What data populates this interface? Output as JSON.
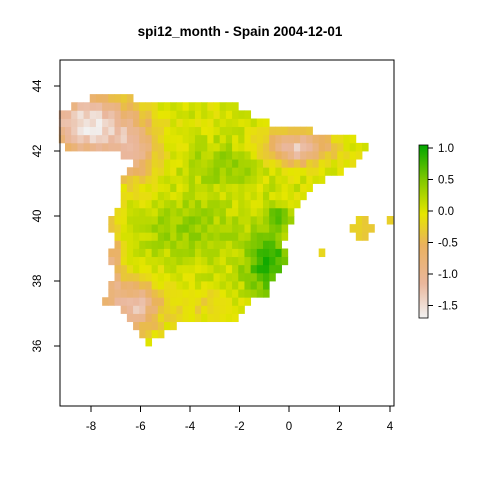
{
  "chart_data": {
    "type": "heatmap",
    "title": "spi12_month - Spain 2004-12-01",
    "xlabel": "",
    "ylabel": "",
    "xlim": [
      -9.3,
      4.3
    ],
    "ylim": [
      34,
      45
    ],
    "x_ticks": [
      "-8",
      "-6",
      "-4",
      "-2",
      "0",
      "2",
      "4"
    ],
    "y_ticks": [
      "36",
      "38",
      "40",
      "42",
      "44"
    ],
    "legend": {
      "placement": "right",
      "ticks": [
        "1.0",
        "0.5",
        "0.0",
        "-0.5",
        "-1.0",
        "-1.5"
      ],
      "range": [
        -1.75,
        1.1
      ],
      "colors": [
        "#f2f2f2",
        "#eab79c",
        "#eab15f",
        "#e6e600",
        "#80c800",
        "#00a600"
      ]
    },
    "spi_pattern": {
      "northwest_galicia": -1.65,
      "ebro_northeast": -1.4,
      "southwest_andalusia": -1.3,
      "central_plateau": 0.4,
      "east_valencia_murcia": 0.9,
      "balearic_islands": -0.3
    },
    "grid": false
  }
}
